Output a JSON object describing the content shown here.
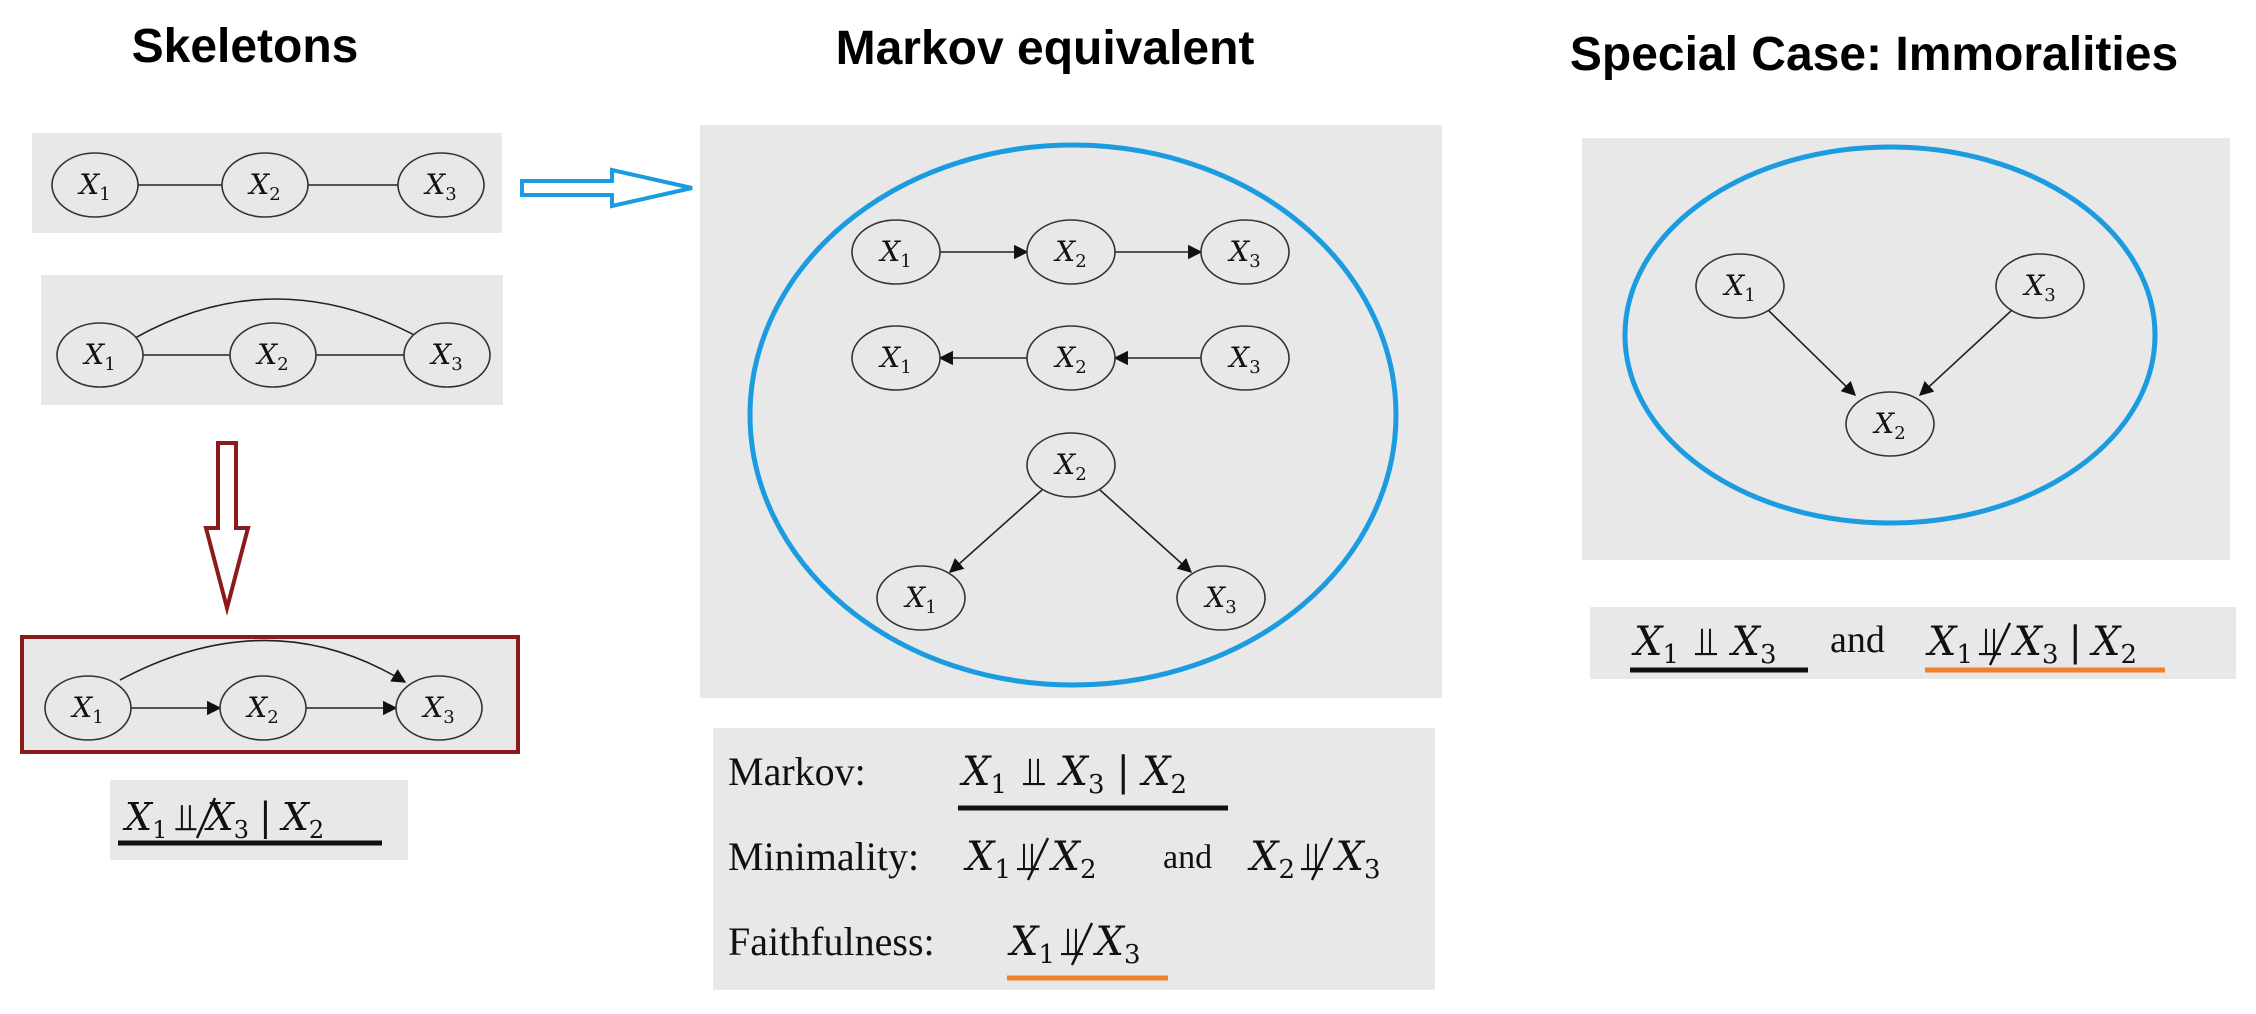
{
  "titles": {
    "left": "Skeletons",
    "middle": "Markov equivalent",
    "right": "Special Case: Immoralities"
  },
  "nodes": {
    "x1": "X",
    "x1_sub": "1",
    "x2": "X",
    "x2_sub": "2",
    "x3": "X",
    "x3_sub": "3"
  },
  "statements": {
    "markov_label": "Markov:",
    "minimality_label": "Minimality:",
    "faithfulness_label": "Faithfulness:",
    "and_word": "and",
    "indep_symbol": "⫫",
    "given_symbol": "|"
  },
  "colors": {
    "blue": "#1b9be0",
    "dark_red": "#8b1a1a",
    "orange": "#f07f2e",
    "black_underline": "#111111"
  }
}
